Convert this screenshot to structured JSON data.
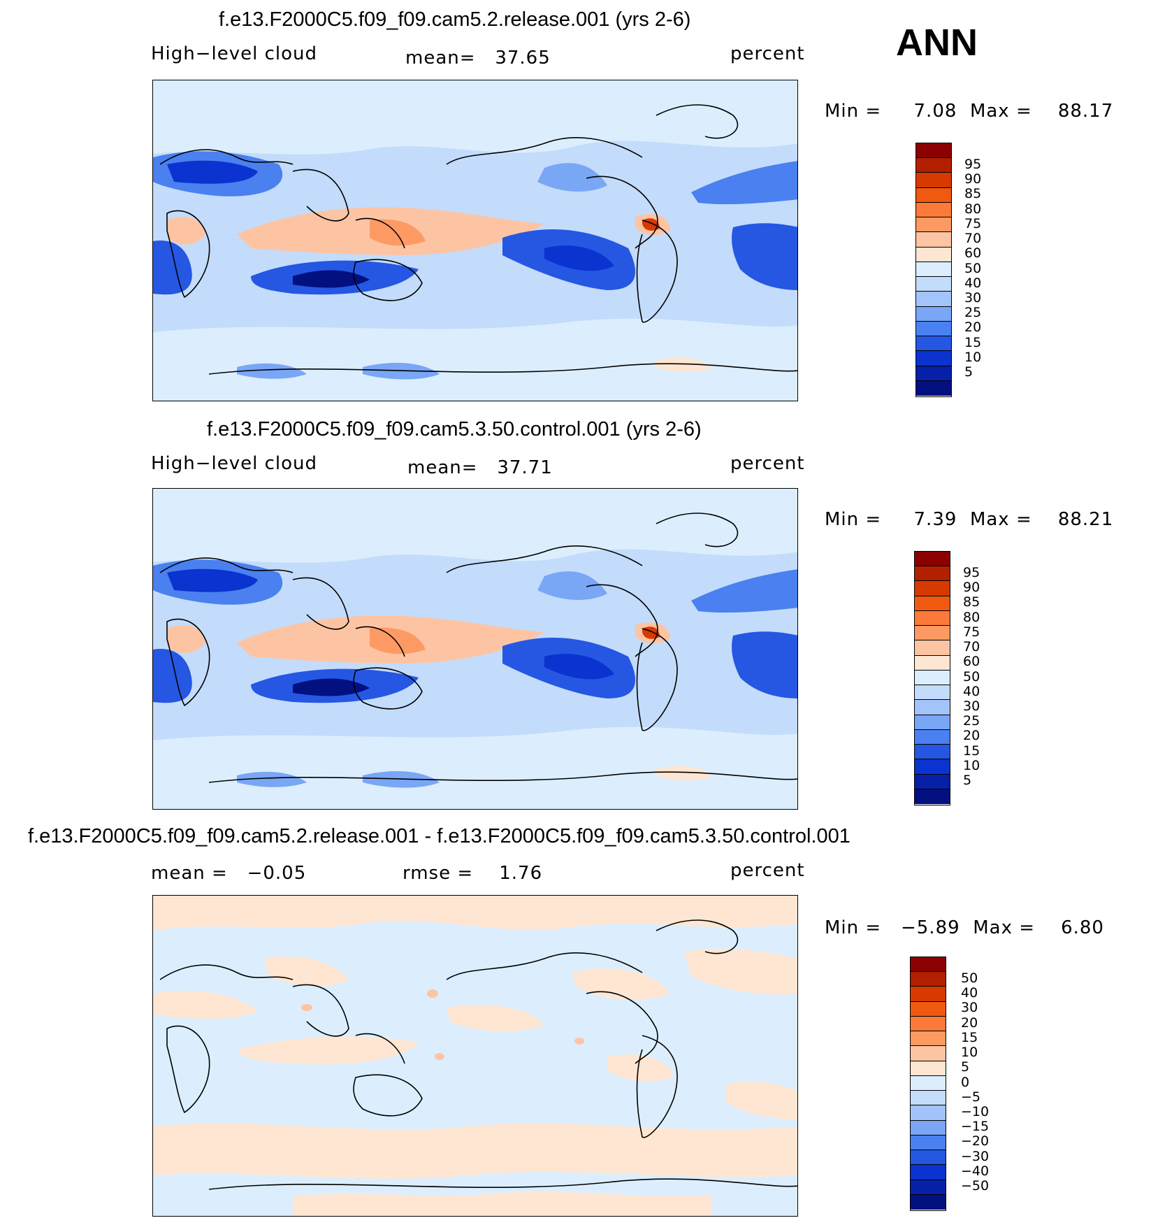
{
  "ann_label": "ANN",
  "panels": [
    {
      "title": "f.e13.F2000C5.f09_f09.cam5.2.release.001 (yrs 2-6)",
      "left_label": "High−level cloud",
      "center_label": "mean=",
      "center_value": "37.65",
      "units": "percent",
      "min_label": "Min =",
      "min_value": "7.08",
      "max_label": "Max =",
      "max_value": "88.17"
    },
    {
      "title": "f.e13.F2000C5.f09_f09.cam5.3.50.control.001 (yrs 2-6)",
      "left_label": "High−level cloud",
      "center_label": "mean=",
      "center_value": "37.71",
      "units": "percent",
      "min_label": "Min =",
      "min_value": "7.39",
      "max_label": "Max =",
      "max_value": "88.21"
    },
    {
      "title": "f.e13.F2000C5.f09_f09.cam5.2.release.001 - f.e13.F2000C5.f09_f09.cam5.3.50.control.001",
      "left_label": "mean =",
      "left_value": "−0.05",
      "center_label": "rmse =",
      "center_value": "1.76",
      "units": "percent",
      "min_label": "Min =",
      "min_value": "−5.89",
      "max_label": "Max =",
      "max_value": "6.80"
    }
  ],
  "colorbar_abs": {
    "labels": [
      "95",
      "90",
      "85",
      "80",
      "75",
      "70",
      "60",
      "50",
      "40",
      "30",
      "25",
      "20",
      "15",
      "10",
      "5"
    ],
    "colors": [
      "#8b0000",
      "#b22000",
      "#d73a00",
      "#f05a10",
      "#fb7a3a",
      "#fd9a64",
      "#fdc4a4",
      "#fee6d2",
      "#dceefd",
      "#c3dcfb",
      "#a3c4fa",
      "#7aa6f6",
      "#4a80ef",
      "#2557e3",
      "#0a33cf",
      "#0620a8",
      "#021080"
    ]
  },
  "colorbar_diff": {
    "labels": [
      "50",
      "40",
      "30",
      "20",
      "15",
      "10",
      "5",
      "0",
      "−5",
      "−10",
      "−15",
      "−20",
      "−30",
      "−40",
      "−50"
    ],
    "colors": [
      "#8b0000",
      "#b22000",
      "#d73a00",
      "#f05a10",
      "#fb7a3a",
      "#fd9a64",
      "#fdc4a4",
      "#fee6d2",
      "#dceefd",
      "#c3dcfb",
      "#a3c4fa",
      "#7aa6f6",
      "#4a80ef",
      "#2557e3",
      "#0a33cf",
      "#0620a8",
      "#021080"
    ]
  }
}
